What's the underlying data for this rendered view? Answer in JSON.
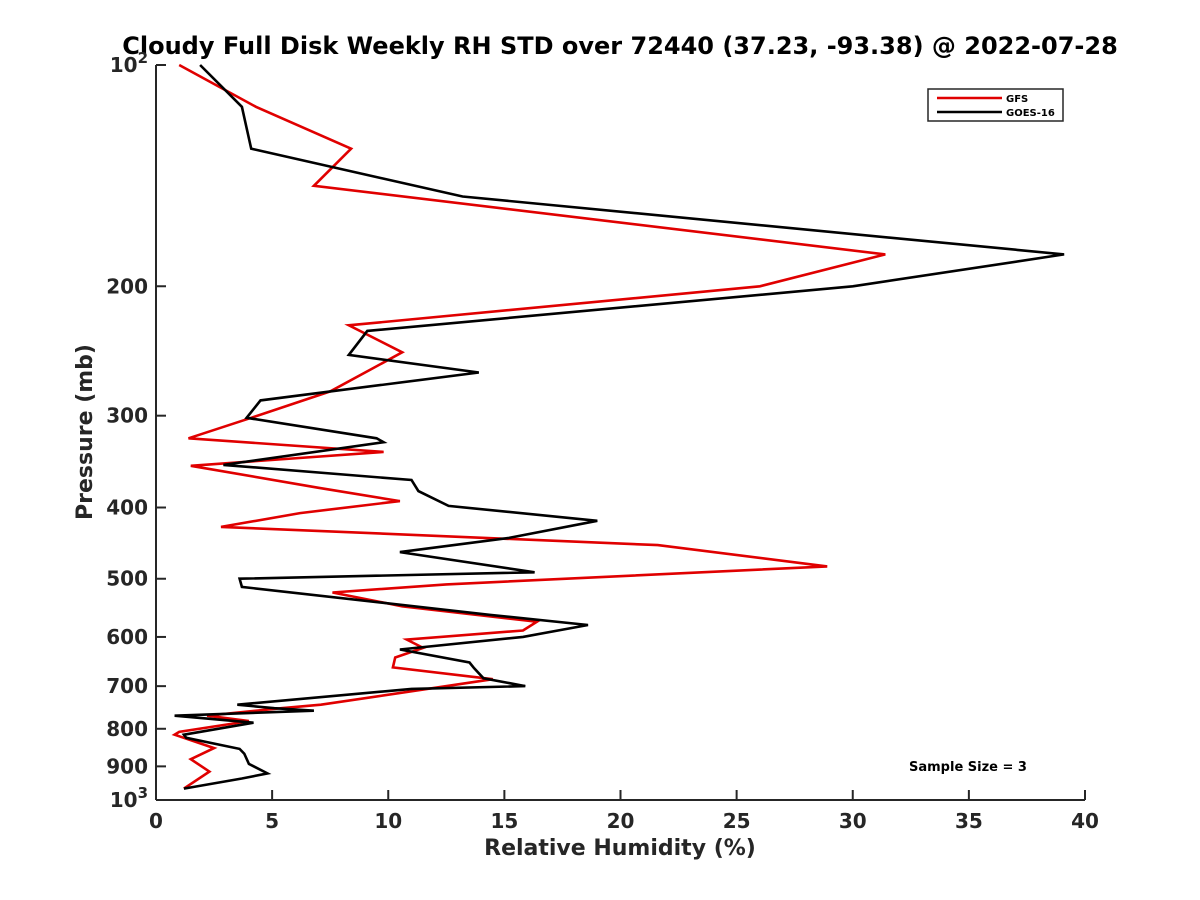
{
  "chart_data": {
    "type": "line",
    "title": "Cloudy Full Disk Weekly RH STD over 72440 (37.23, -93.38) @ 2022-07-28",
    "xlabel": "Relative Humidity (%)",
    "ylabel": "Pressure (mb)",
    "xlim": [
      0,
      40
    ],
    "ylim": [
      100,
      1000
    ],
    "yscale": "log",
    "y_reversed": true,
    "x_ticks": [
      0,
      5,
      10,
      15,
      20,
      25,
      30,
      35,
      40
    ],
    "x_tick_labels": [
      "0",
      "5",
      "10",
      "15",
      "20",
      "25",
      "30",
      "35",
      "40"
    ],
    "y_ticks": [
      100,
      200,
      300,
      400,
      500,
      600,
      700,
      800,
      900,
      1000
    ],
    "y_tick_labels": [
      "10^2",
      "200",
      "300",
      "400",
      "500",
      "600",
      "700",
      "800",
      "900",
      "10^3"
    ],
    "grid": false,
    "legend_position": "top-right",
    "annotation": "Sample Size = 3",
    "series": [
      {
        "name": "GFS",
        "color": "#e00000",
        "points": [
          [
            1.0,
            100
          ],
          [
            4.3,
            114
          ],
          [
            8.4,
            130
          ],
          [
            6.8,
            146
          ],
          [
            31.4,
            181
          ],
          [
            26.0,
            200
          ],
          [
            8.3,
            226
          ],
          [
            10.6,
            246
          ],
          [
            9.2,
            260
          ],
          [
            7.5,
            278
          ],
          [
            4.1,
            302
          ],
          [
            1.4,
            322
          ],
          [
            9.8,
            336
          ],
          [
            1.5,
            351
          ],
          [
            7.0,
            376
          ],
          [
            10.5,
            392
          ],
          [
            6.2,
            407
          ],
          [
            2.8,
            425
          ],
          [
            21.6,
            450
          ],
          [
            28.9,
            481
          ],
          [
            12.5,
            509
          ],
          [
            7.6,
            522
          ],
          [
            10.6,
            545
          ],
          [
            16.4,
            572
          ],
          [
            15.8,
            588
          ],
          [
            10.8,
            605
          ],
          [
            11.5,
            621
          ],
          [
            10.3,
            640
          ],
          [
            10.2,
            660
          ],
          [
            14.5,
            685
          ],
          [
            7.1,
            742
          ],
          [
            5.4,
            750
          ],
          [
            2.2,
            768
          ],
          [
            4.0,
            781
          ],
          [
            1.0,
            808
          ],
          [
            0.8,
            815
          ],
          [
            2.5,
            850
          ],
          [
            1.5,
            880
          ],
          [
            2.3,
            915
          ],
          [
            1.2,
            965
          ]
        ]
      },
      {
        "name": "GOES-16",
        "color": "#000000",
        "points": [
          [
            1.9,
            100
          ],
          [
            3.7,
            114
          ],
          [
            4.1,
            130
          ],
          [
            13.2,
            151
          ],
          [
            39.1,
            181
          ],
          [
            30.0,
            200
          ],
          [
            9.1,
            230
          ],
          [
            8.3,
            248
          ],
          [
            13.9,
            262
          ],
          [
            4.5,
            286
          ],
          [
            3.9,
            302
          ],
          [
            9.5,
            322
          ],
          [
            9.8,
            326
          ],
          [
            2.9,
            350
          ],
          [
            11.0,
            367
          ],
          [
            11.3,
            380
          ],
          [
            12.6,
            398
          ],
          [
            19.0,
            417
          ],
          [
            15.2,
            440
          ],
          [
            10.5,
            460
          ],
          [
            16.3,
            490
          ],
          [
            3.6,
            500
          ],
          [
            3.7,
            513
          ],
          [
            14.4,
            560
          ],
          [
            18.6,
            578
          ],
          [
            15.8,
            600
          ],
          [
            10.5,
            624
          ],
          [
            13.5,
            650
          ],
          [
            13.7,
            662
          ],
          [
            14.1,
            683
          ],
          [
            15.9,
            700
          ],
          [
            11.0,
            706
          ],
          [
            3.5,
            742
          ],
          [
            5.1,
            750
          ],
          [
            6.8,
            756
          ],
          [
            0.8,
            768
          ],
          [
            4.2,
            785
          ],
          [
            1.2,
            815
          ],
          [
            1.3,
            823
          ],
          [
            3.6,
            852
          ],
          [
            3.8,
            865
          ],
          [
            4.0,
            893
          ],
          [
            4.8,
            920
          ],
          [
            3.7,
            935
          ],
          [
            1.2,
            965
          ]
        ]
      }
    ]
  }
}
